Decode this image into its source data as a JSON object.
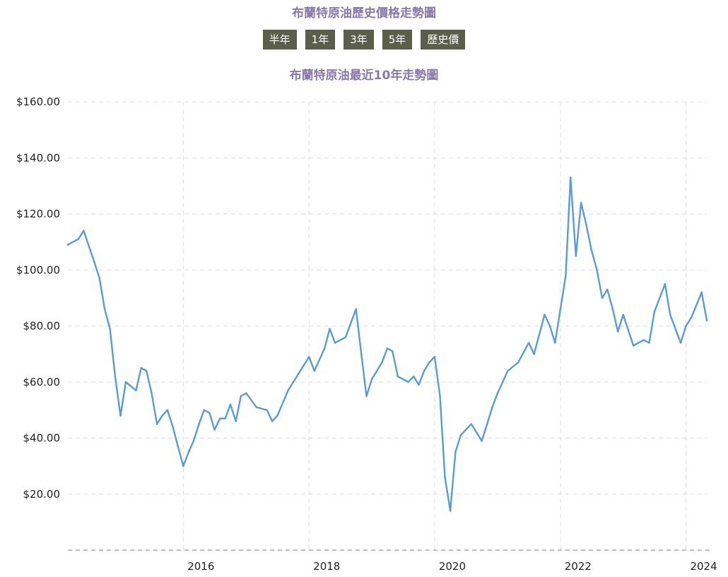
{
  "header": {
    "title": "布蘭特原油歷史價格走勢圖",
    "range_buttons": [
      "半年",
      "1年",
      "3年",
      "5年",
      "歷史價"
    ]
  },
  "chart_data": {
    "type": "line",
    "title": "布蘭特原油最近10年走勢圖",
    "xlabel": "",
    "ylabel": "",
    "x_range": [
      "2014-03-01",
      "2024-05-01"
    ],
    "ylim": [
      0,
      160
    ],
    "y_ticks": [
      "$20.00",
      "$40.00",
      "$60.00",
      "$80.00",
      "$100.00",
      "$120.00",
      "$140.00",
      "$160.00"
    ],
    "x_ticks": [
      "2016",
      "2018",
      "2020",
      "2022",
      "2024"
    ],
    "grid": true,
    "line_color": "#5b9bd5",
    "series": [
      {
        "x": [
          "2014-03",
          "2014-05",
          "2014-06",
          "2014-08",
          "2014-09",
          "2014-10",
          "2014-11",
          "2014-12",
          "2015-01",
          "2015-02",
          "2015-04",
          "2015-05",
          "2015-06",
          "2015-07",
          "2015-08",
          "2015-09",
          "2015-10",
          "2015-11",
          "2015-12",
          "2016-01",
          "2016-02",
          "2016-03",
          "2016-04",
          "2016-05",
          "2016-06",
          "2016-07",
          "2016-08",
          "2016-09",
          "2016-10",
          "2016-11",
          "2016-12",
          "2017-01",
          "2017-03",
          "2017-05",
          "2017-06",
          "2017-07",
          "2017-09",
          "2017-11",
          "2018-01",
          "2018-02",
          "2018-04",
          "2018-05",
          "2018-06",
          "2018-08",
          "2018-10",
          "2018-11",
          "2018-12",
          "2019-01",
          "2019-03",
          "2019-04",
          "2019-05",
          "2019-06",
          "2019-08",
          "2019-09",
          "2019-10",
          "2019-11",
          "2019-12",
          "2020-01",
          "2020-02",
          "2020-03",
          "2020-04",
          "2020-05",
          "2020-06",
          "2020-07",
          "2020-08",
          "2020-09",
          "2020-10",
          "2020-11",
          "2020-12",
          "2021-01",
          "2021-03",
          "2021-05",
          "2021-07",
          "2021-08",
          "2021-10",
          "2021-11",
          "2021-12",
          "2022-01",
          "2022-02",
          "2022-03",
          "2022-04",
          "2022-05",
          "2022-06",
          "2022-07",
          "2022-08",
          "2022-09",
          "2022-10",
          "2022-11",
          "2022-12",
          "2023-01",
          "2023-03",
          "2023-05",
          "2023-06",
          "2023-07",
          "2023-09",
          "2023-10",
          "2023-12",
          "2024-01",
          "2024-02",
          "2024-04",
          "2024-05"
        ],
        "values": [
          109,
          111,
          114,
          103,
          97,
          86,
          79,
          62,
          48,
          60,
          57,
          65,
          64,
          56,
          45,
          48,
          50,
          44,
          37,
          30,
          35,
          39,
          45,
          50,
          49,
          43,
          47,
          47,
          52,
          46,
          55,
          56,
          51,
          50,
          46,
          48,
          57,
          63,
          69,
          64,
          72,
          79,
          74,
          76,
          86,
          70,
          55,
          61,
          67,
          72,
          71,
          62,
          60,
          62,
          59,
          64,
          67,
          69,
          55,
          26,
          14,
          35,
          41,
          43,
          45,
          42,
          39,
          45,
          51,
          56,
          64,
          67,
          74,
          70,
          84,
          80,
          74,
          86,
          98,
          133,
          105,
          124,
          116,
          107,
          100,
          90,
          93,
          86,
          78,
          84,
          73,
          75,
          74,
          85,
          95,
          84,
          74,
          80,
          83,
          92,
          82
        ]
      }
    ]
  }
}
